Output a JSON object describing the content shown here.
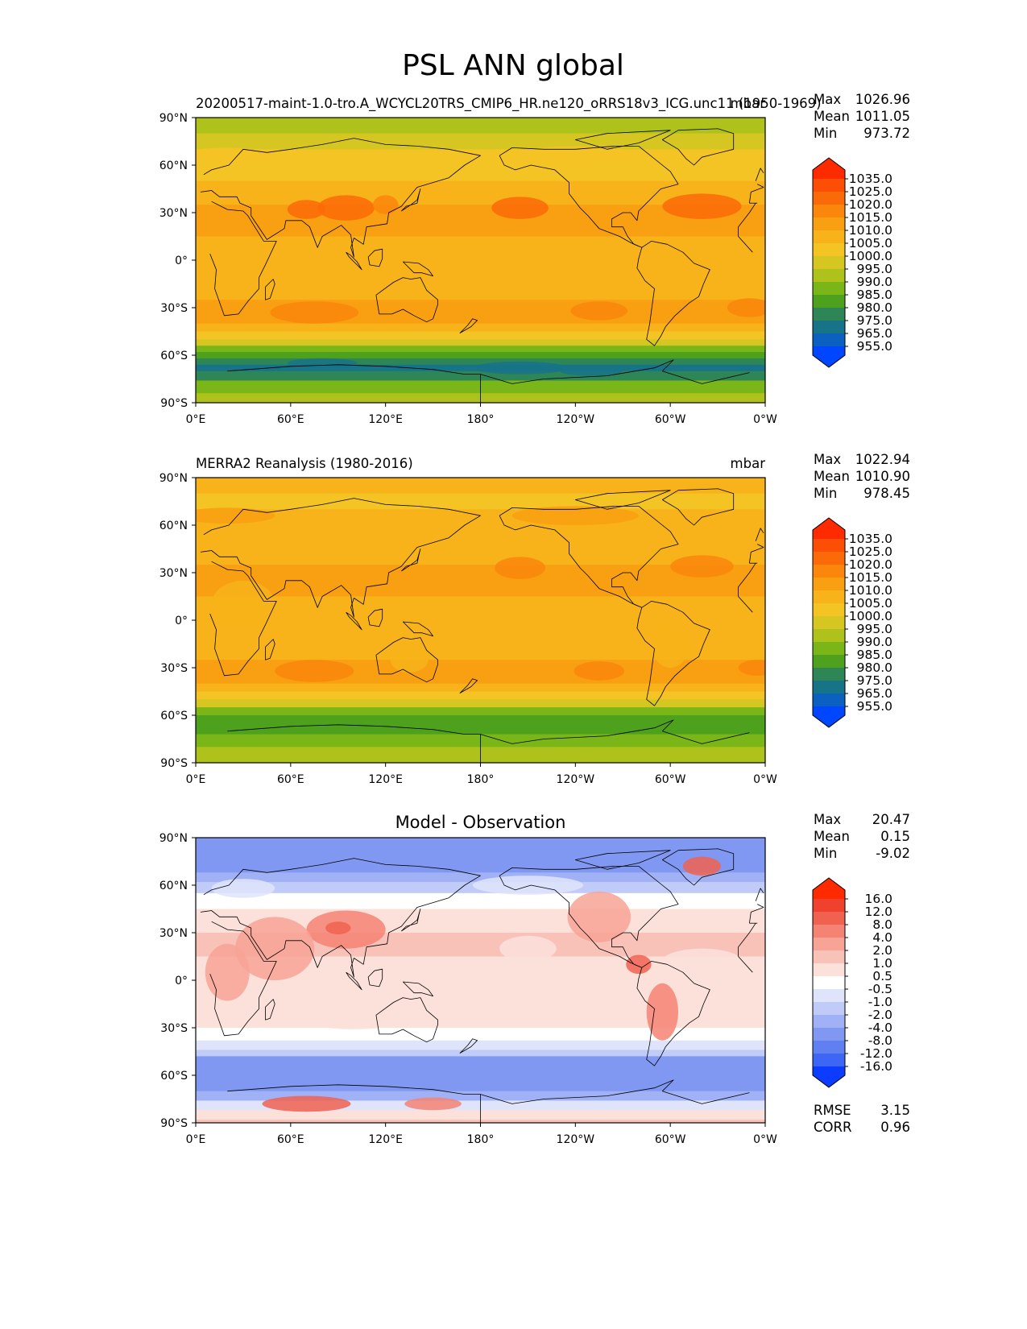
{
  "figure": {
    "title": "PSL ANN global"
  },
  "chart_data": [
    {
      "type": "heatmap",
      "name": "test",
      "title_left": "20200517-maint-1.0-tro.A_WCYCL20TRS_CMIP6_HR.ne120_oRRS18v3_ICG.unc11 (1950-1969)",
      "title_center": "",
      "title_right": "mbar",
      "projection": "PlateCarree, central longitude 180",
      "field": "Sea level pressure, annual mean",
      "xticks": [
        "0°E",
        "60°E",
        "120°E",
        "180°",
        "120°W",
        "60°W",
        "0°W"
      ],
      "yticks": [
        "90°N",
        "60°N",
        "30°N",
        "0°",
        "30°S",
        "60°S",
        "90°S"
      ],
      "stats": [
        {
          "label": "Max",
          "value": "1026.96"
        },
        {
          "label": "Mean",
          "value": "1011.05"
        },
        {
          "label": "Min",
          "value": "973.72"
        }
      ],
      "colorbar": {
        "levels": [
          "1035.0",
          "1025.0",
          "1020.0",
          "1015.0",
          "1010.0",
          "1005.0",
          "1000.0",
          "995.0",
          "990.0",
          "985.0",
          "980.0",
          "975.0",
          "965.0",
          "955.0"
        ],
        "colors": [
          "#fe2a00",
          "#fd4e05",
          "#fb6a08",
          "#fa860c",
          "#f99f12",
          "#f8b31a",
          "#f4c324",
          "#d5c622",
          "#afc21c",
          "#7ab618",
          "#4ea11c",
          "#2e8657",
          "#177388",
          "#0b60c0",
          "#0046fe"
        ]
      },
      "summary": {
        "northern_band_range": [
          1005,
          1020
        ],
        "tropics_range": [
          1010,
          1015
        ],
        "subtropical_highs_range": [
          1020,
          1025
        ],
        "southern_ocean_trough_range": [
          975,
          990
        ]
      }
    },
    {
      "type": "heatmap",
      "name": "reference",
      "title_left": "MERRA2 Reanalysis (1980-2016)",
      "title_center": "",
      "title_right": "mbar",
      "projection": "PlateCarree, central longitude 180",
      "field": "Sea level pressure, annual mean",
      "xticks": [
        "0°E",
        "60°E",
        "120°E",
        "180°",
        "120°W",
        "60°W",
        "0°W"
      ],
      "yticks": [
        "90°N",
        "60°N",
        "30°N",
        "0°",
        "30°S",
        "60°S",
        "90°S"
      ],
      "stats": [
        {
          "label": "Max",
          "value": "1022.94"
        },
        {
          "label": "Mean",
          "value": "1010.90"
        },
        {
          "label": "Min",
          "value": "978.45"
        }
      ],
      "colorbar": {
        "levels": [
          "1035.0",
          "1025.0",
          "1020.0",
          "1015.0",
          "1010.0",
          "1005.0",
          "1000.0",
          "995.0",
          "990.0",
          "985.0",
          "980.0",
          "975.0",
          "965.0",
          "955.0"
        ],
        "colors": [
          "#fe2a00",
          "#fd4e05",
          "#fb6a08",
          "#fa860c",
          "#f99f12",
          "#f8b31a",
          "#f4c324",
          "#d5c622",
          "#afc21c",
          "#7ab618",
          "#4ea11c",
          "#2e8657",
          "#177388",
          "#0b60c0",
          "#0046fe"
        ]
      },
      "summary": {
        "northern_band_range": [
          1005,
          1015
        ],
        "tropics_range": [
          1010,
          1015
        ],
        "subtropical_highs_range": [
          1015,
          1025
        ],
        "southern_ocean_trough_range": [
          985,
          995
        ]
      }
    },
    {
      "type": "heatmap",
      "name": "difference",
      "title_left": "",
      "title_center": "Model - Observation",
      "title_right": "",
      "projection": "PlateCarree, central longitude 180",
      "field": "Sea level pressure difference",
      "xticks": [
        "0°E",
        "60°E",
        "120°E",
        "180°",
        "120°W",
        "60°W",
        "0°W"
      ],
      "yticks": [
        "90°N",
        "60°N",
        "30°N",
        "0°",
        "30°S",
        "60°S",
        "90°S"
      ],
      "stats": [
        {
          "label": "Max",
          "value": "20.47"
        },
        {
          "label": "Mean",
          "value": "0.15"
        },
        {
          "label": "Min",
          "value": "-9.02"
        }
      ],
      "extra_stats": [
        {
          "label": "RMSE",
          "value": "3.15"
        },
        {
          "label": "CORR",
          "value": "0.96"
        }
      ],
      "colorbar": {
        "levels": [
          "16.0",
          "12.0",
          "8.0",
          "4.0",
          "2.0",
          "1.0",
          "0.5",
          "-0.5",
          "-1.0",
          "-2.0",
          "-4.0",
          "-8.0",
          "-12.0",
          "-16.0"
        ],
        "colors": [
          "#ff2a00",
          "#f0412e",
          "#f06150",
          "#f58373",
          "#f7a395",
          "#f9c2b8",
          "#fce0da",
          "#ffffff",
          "#dfe4fb",
          "#c0cbf8",
          "#a0b2f5",
          "#8098f2",
          "#607ff0",
          "#3d66f4",
          "#0b3cff"
        ]
      },
      "summary": {
        "arctic_ocean_range": [
          -8,
          -4
        ],
        "northern_continents_range": [
          2,
          12
        ],
        "subtropical_oceans_range": [
          1,
          2
        ],
        "southern_ocean_range": [
          -8,
          -4
        ],
        "antarctic_plateau_range": [
          1,
          8
        ]
      }
    }
  ]
}
